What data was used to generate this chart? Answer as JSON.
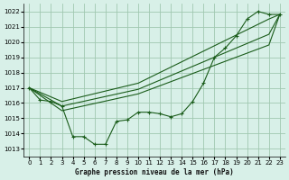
{
  "title": "Graphe pression niveau de la mer (hPa)",
  "bg_color": "#d8f0e8",
  "grid_color": "#a0c8b0",
  "line_color": "#1a5c1a",
  "x_ticks": [
    0,
    1,
    2,
    3,
    4,
    5,
    6,
    7,
    8,
    9,
    10,
    11,
    12,
    13,
    14,
    15,
    16,
    17,
    18,
    19,
    20,
    21,
    22,
    23
  ],
  "y_ticks": [
    1013,
    1014,
    1015,
    1016,
    1017,
    1018,
    1019,
    1020,
    1021,
    1022
  ],
  "ylim": [
    1012.5,
    1022.5
  ],
  "xlim": [
    -0.5,
    23.5
  ],
  "series1_x": [
    0,
    1,
    2,
    3,
    4,
    5,
    6,
    7,
    8,
    9,
    10,
    11,
    12,
    13,
    14,
    15,
    16,
    17,
    18,
    19,
    20,
    21,
    22,
    23
  ],
  "series1_y": [
    1017.0,
    1016.2,
    1016.1,
    1015.8,
    1013.8,
    1013.8,
    1013.3,
    1013.3,
    1014.8,
    1014.9,
    1015.4,
    1015.4,
    1015.3,
    1015.1,
    1015.3,
    1016.1,
    1017.3,
    1019.0,
    1019.6,
    1020.4,
    1021.5,
    1022.0,
    1021.8,
    1021.8
  ],
  "series2_x": [
    0,
    3,
    10,
    22,
    23
  ],
  "series2_y": [
    1017.0,
    1016.1,
    1017.3,
    1021.5,
    1021.8
  ],
  "series3_x": [
    0,
    3,
    10,
    22,
    23
  ],
  "series3_y": [
    1017.0,
    1015.8,
    1016.9,
    1020.5,
    1021.8
  ],
  "series4_x": [
    0,
    3,
    10,
    22,
    23
  ],
  "series4_y": [
    1017.0,
    1015.5,
    1016.6,
    1019.8,
    1021.8
  ]
}
